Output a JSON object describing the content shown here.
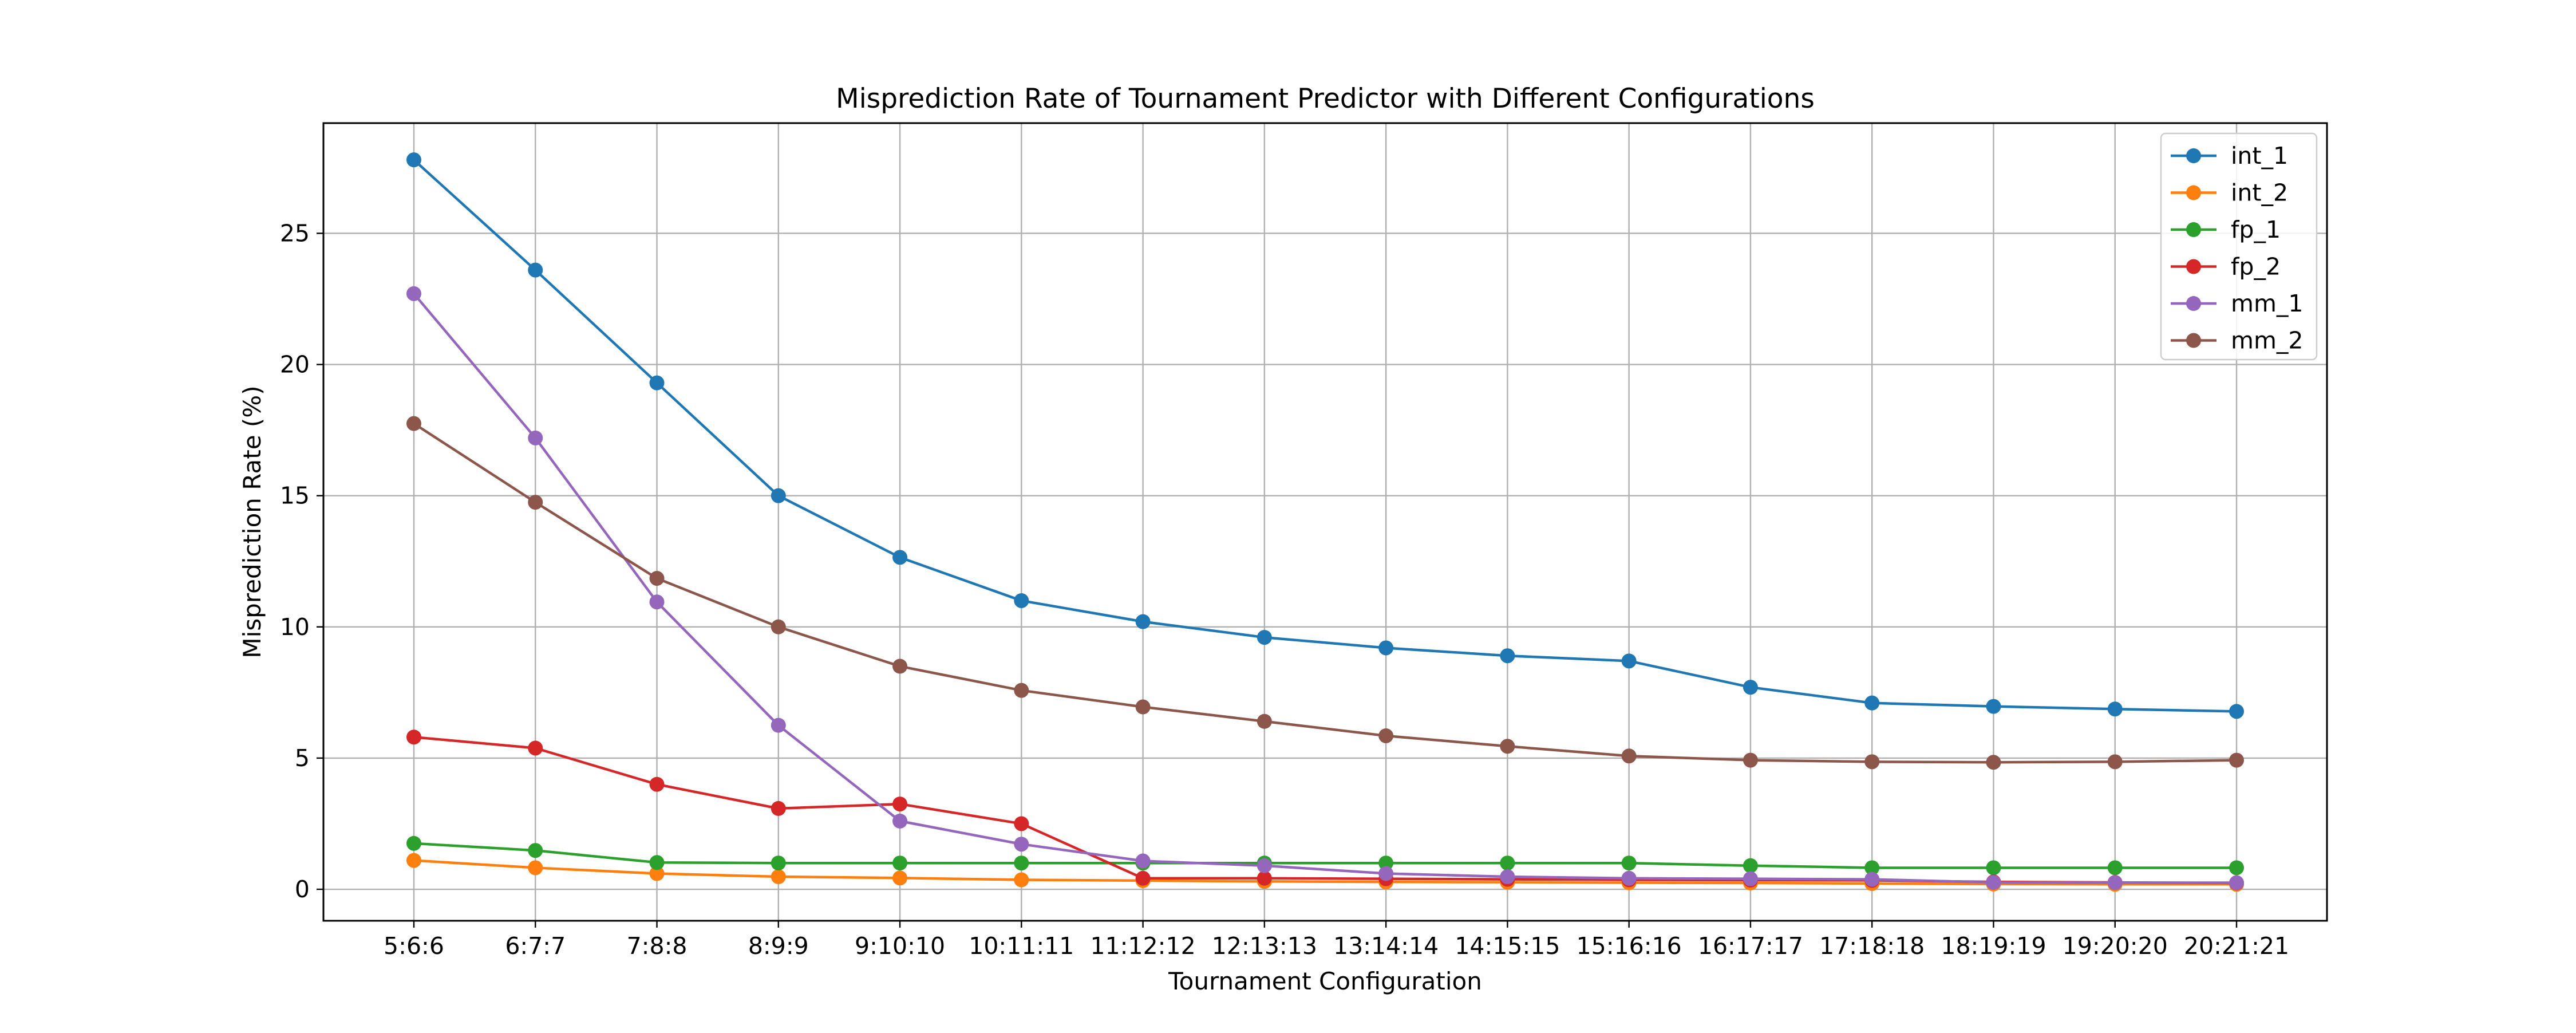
{
  "chart_data": {
    "type": "line",
    "title": "Misprediction Rate of Tournament Predictor with Different Configurations",
    "xlabel": "Tournament Configuration",
    "ylabel": "Misprediction Rate (%)",
    "categories": [
      "5:6:6",
      "6:7:7",
      "7:8:8",
      "8:9:9",
      "9:10:10",
      "10:11:11",
      "11:12:12",
      "12:13:13",
      "13:14:14",
      "14:15:15",
      "15:16:16",
      "16:17:17",
      "17:18:18",
      "18:19:19",
      "19:20:20",
      "20:21:21"
    ],
    "ylim": [
      -1.2,
      29.2
    ],
    "yticks": [
      "0",
      "5",
      "10",
      "15",
      "20",
      "25"
    ],
    "grid": true,
    "legend_position": "top-right",
    "series": [
      {
        "name": "int_1",
        "color": "#1f77b4",
        "values": [
          27.8,
          23.6,
          19.3,
          15.0,
          12.65,
          11.0,
          10.2,
          9.6,
          9.2,
          8.9,
          8.7,
          7.7,
          7.1,
          6.97,
          6.87,
          6.78
        ]
      },
      {
        "name": "int_2",
        "color": "#ff7f0e",
        "values": [
          1.1,
          0.82,
          0.6,
          0.48,
          0.43,
          0.36,
          0.33,
          0.3,
          0.28,
          0.27,
          0.25,
          0.24,
          0.22,
          0.2,
          0.19,
          0.19
        ]
      },
      {
        "name": "fp_1",
        "color": "#2ca02c",
        "values": [
          1.75,
          1.48,
          1.02,
          1.0,
          1.0,
          1.0,
          1.0,
          1.0,
          1.0,
          1.0,
          1.0,
          0.9,
          0.82,
          0.82,
          0.82,
          0.82
        ]
      },
      {
        "name": "fp_2",
        "color": "#d62728",
        "values": [
          5.8,
          5.38,
          4.0,
          3.08,
          3.25,
          2.5,
          0.42,
          0.42,
          0.4,
          0.38,
          0.36,
          0.35,
          0.34,
          0.28,
          0.26,
          0.24
        ]
      },
      {
        "name": "mm_1",
        "color": "#9467bd",
        "values": [
          22.7,
          17.2,
          10.95,
          6.25,
          2.6,
          1.72,
          1.08,
          0.9,
          0.6,
          0.48,
          0.42,
          0.4,
          0.38,
          0.26,
          0.25,
          0.25
        ]
      },
      {
        "name": "mm_2",
        "color": "#8c564b",
        "values": [
          17.75,
          14.75,
          11.85,
          10.0,
          8.5,
          7.58,
          6.95,
          6.4,
          5.85,
          5.45,
          5.08,
          4.92,
          4.86,
          4.84,
          4.86,
          4.92
        ]
      }
    ]
  }
}
